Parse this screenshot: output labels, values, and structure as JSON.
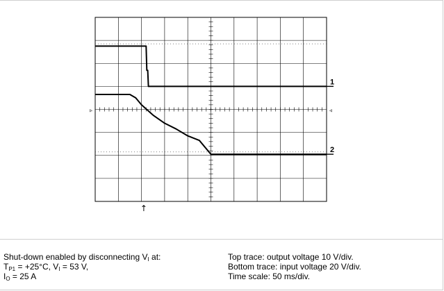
{
  "chart_data": {
    "type": "line",
    "grid": "on",
    "x_divisions": 10,
    "y_divisions": 8,
    "channel_labels": [
      "1",
      "2"
    ],
    "time_marker_glyph": "↑",
    "trigger_markers": [
      "▹",
      "◃"
    ],
    "time_marker_div": 2.1,
    "series": [
      {
        "name": "",
        "values_div": [
          [
            0,
            6.75
          ],
          [
            2.1,
            6.75
          ],
          [
            2.2,
            6.75
          ],
          [
            2.23,
            5.7
          ],
          [
            2.27,
            5.7
          ],
          [
            2.3,
            5.0
          ],
          [
            2.4,
            5.0
          ],
          [
            10,
            5.0
          ]
        ]
      },
      {
        "name": "",
        "values_div": [
          [
            0,
            4.65
          ],
          [
            1.5,
            4.65
          ],
          [
            1.75,
            4.5
          ],
          [
            2.0,
            4.2
          ],
          [
            2.5,
            3.75
          ],
          [
            3.0,
            3.4
          ],
          [
            3.5,
            3.15
          ],
          [
            4.0,
            2.85
          ],
          [
            4.5,
            2.65
          ],
          [
            5.0,
            2.05
          ],
          [
            10,
            2.05
          ]
        ]
      }
    ]
  },
  "caption": {
    "left_line1_pre": "Shut-down enabled by disconnecting V",
    "left_line1_sub": "I",
    "left_line1_post": " at:",
    "left_line2_a": "T",
    "left_line2_sub1": "P1",
    "left_line2_b": " = +25°C, V",
    "left_line2_sub2": "I",
    "left_line2_c": " = 53 V,",
    "left_line3_a": "I",
    "left_line3_sub": "O",
    "left_line3_b": " = 25 A",
    "right_line1": "Top trace: output voltage 10 V/div.",
    "right_line2": "Bottom trace: input voltage 20 V/div.",
    "right_line3": "Time scale: 50 ms/div."
  }
}
